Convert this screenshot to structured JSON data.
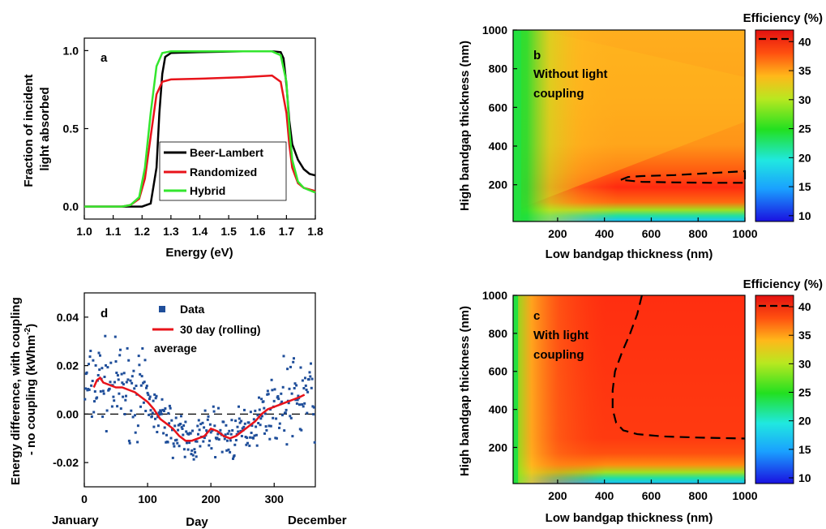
{
  "chart_data": [
    {
      "id": "a",
      "type": "line",
      "panel_label": "a",
      "xlabel": "Energy (eV)",
      "ylabel": "Fraction of incident light absorbed",
      "xlim": [
        1.0,
        1.8
      ],
      "ylim": [
        -0.08,
        1.08
      ],
      "xticks": [
        "1.0",
        "1.1",
        "1.2",
        "1.3",
        "1.4",
        "1.5",
        "1.6",
        "1.7",
        "1.8"
      ],
      "yticks": [
        "0.0",
        "0.5",
        "1.0"
      ],
      "legend_position": "lower-center",
      "series": [
        {
          "name": "Beer-Lambert",
          "color": "#000000",
          "x": [
            1.0,
            1.2,
            1.23,
            1.25,
            1.26,
            1.27,
            1.28,
            1.3,
            1.4,
            1.55,
            1.65,
            1.68,
            1.69,
            1.7,
            1.71,
            1.72,
            1.74,
            1.76,
            1.78,
            1.8
          ],
          "y": [
            0,
            0,
            0.02,
            0.25,
            0.6,
            0.85,
            0.96,
            0.985,
            0.99,
            0.995,
            0.995,
            0.99,
            0.95,
            0.78,
            0.55,
            0.4,
            0.3,
            0.24,
            0.21,
            0.2
          ]
        },
        {
          "name": "Randomized",
          "color": "#e8131a",
          "x": [
            1.0,
            1.13,
            1.16,
            1.19,
            1.21,
            1.23,
            1.25,
            1.27,
            1.3,
            1.4,
            1.55,
            1.65,
            1.68,
            1.7,
            1.71,
            1.72,
            1.74,
            1.76,
            1.8
          ],
          "y": [
            0,
            0,
            0.01,
            0.05,
            0.18,
            0.45,
            0.72,
            0.8,
            0.815,
            0.82,
            0.83,
            0.84,
            0.8,
            0.6,
            0.4,
            0.25,
            0.15,
            0.12,
            0.1
          ]
        },
        {
          "name": "Hybrid",
          "color": "#33e62e",
          "x": [
            1.0,
            1.13,
            1.16,
            1.19,
            1.21,
            1.23,
            1.25,
            1.27,
            1.3,
            1.4,
            1.55,
            1.65,
            1.68,
            1.7,
            1.71,
            1.72,
            1.74,
            1.76,
            1.8
          ],
          "y": [
            0,
            0,
            0.01,
            0.06,
            0.25,
            0.6,
            0.9,
            0.985,
            0.995,
            0.995,
            0.995,
            0.995,
            0.97,
            0.8,
            0.5,
            0.3,
            0.16,
            0.12,
            0.09
          ]
        }
      ]
    },
    {
      "id": "b",
      "type": "heatmap",
      "panel_label": "b",
      "annotation": [
        "Without light",
        "coupling"
      ],
      "xlabel": "Low bandgap thickness (nm)",
      "ylabel": "High bandgap thickness (nm)",
      "xlim": [
        10,
        1000
      ],
      "ylim": [
        10,
        1000
      ],
      "xticks": [
        "200",
        "400",
        "600",
        "800",
        "1000"
      ],
      "yticks": [
        "200",
        "400",
        "600",
        "800",
        "1000"
      ],
      "colorbar_title": "Efficiency (%)",
      "colorbar_range": [
        9,
        42
      ],
      "colorbar_ticks": [
        "10",
        "15",
        "20",
        "25",
        "30",
        "35",
        "40"
      ],
      "dashed_contour": {
        "x": [
          470,
          500,
          560,
          700,
          850,
          1000,
          1000,
          850,
          700,
          560,
          470
        ],
        "y": [
          225,
          240,
          245,
          250,
          260,
          270,
          210,
          210,
          212,
          215,
          225
        ]
      }
    },
    {
      "id": "c",
      "type": "heatmap",
      "panel_label": "c",
      "annotation": [
        "With light",
        "coupling"
      ],
      "xlabel": "Low bandgap thickness (nm)",
      "ylabel": "High bandgap thickness (nm)",
      "xlim": [
        10,
        1000
      ],
      "ylim": [
        10,
        1000
      ],
      "xticks": [
        "200",
        "400",
        "600",
        "800",
        "1000"
      ],
      "yticks": [
        "200",
        "400",
        "600",
        "800",
        "1000"
      ],
      "colorbar_title": "Efficiency (%)",
      "colorbar_range": [
        9,
        42
      ],
      "colorbar_ticks": [
        "10",
        "15",
        "20",
        "25",
        "30",
        "35",
        "40"
      ],
      "dashed_contour": {
        "x": [
          560,
          540,
          510,
          475,
          445,
          435,
          435,
          450,
          480,
          540,
          650,
          800,
          1000
        ],
        "y": [
          1000,
          900,
          800,
          700,
          600,
          500,
          400,
          330,
          290,
          270,
          258,
          252,
          247
        ]
      }
    },
    {
      "id": "d",
      "type": "scatter",
      "panel_label": "d",
      "xlabel": "Day",
      "ylabel": "Energy difference, with coupling - no coupling (kWhm-2)",
      "xlim": [
        0,
        365
      ],
      "ylim": [
        -0.03,
        0.05
      ],
      "xticks": [
        "0",
        "100",
        "200",
        "300"
      ],
      "yticks": [
        "-0.02",
        "0.00",
        "0.02",
        "0.04"
      ],
      "below_axis_labels": [
        "January",
        "December"
      ],
      "legend": {
        "data": "Data",
        "avg_line1": "30 day (rolling)",
        "avg_line2": "average"
      },
      "avg_series": {
        "name": "30 day (rolling)",
        "color": "#e8131a",
        "x": [
          15,
          20,
          25,
          30,
          40,
          50,
          60,
          70,
          80,
          90,
          100,
          110,
          120,
          130,
          140,
          150,
          160,
          170,
          180,
          190,
          200,
          210,
          220,
          230,
          240,
          250,
          260,
          270,
          280,
          290,
          300,
          310,
          320,
          330,
          340,
          348
        ],
        "y": [
          0.011,
          0.014,
          0.015,
          0.013,
          0.012,
          0.011,
          0.011,
          0.01,
          0.009,
          0.007,
          0.005,
          0.002,
          -0.002,
          -0.004,
          -0.006,
          -0.009,
          -0.011,
          -0.011,
          -0.01,
          -0.009,
          -0.006,
          -0.007,
          -0.009,
          -0.01,
          -0.009,
          -0.007,
          -0.005,
          -0.003,
          0.0,
          0.002,
          0.003,
          0.004,
          0.005,
          0.006,
          0.007,
          0.008
        ]
      },
      "scatter_color": "#1f4e9a"
    }
  ]
}
